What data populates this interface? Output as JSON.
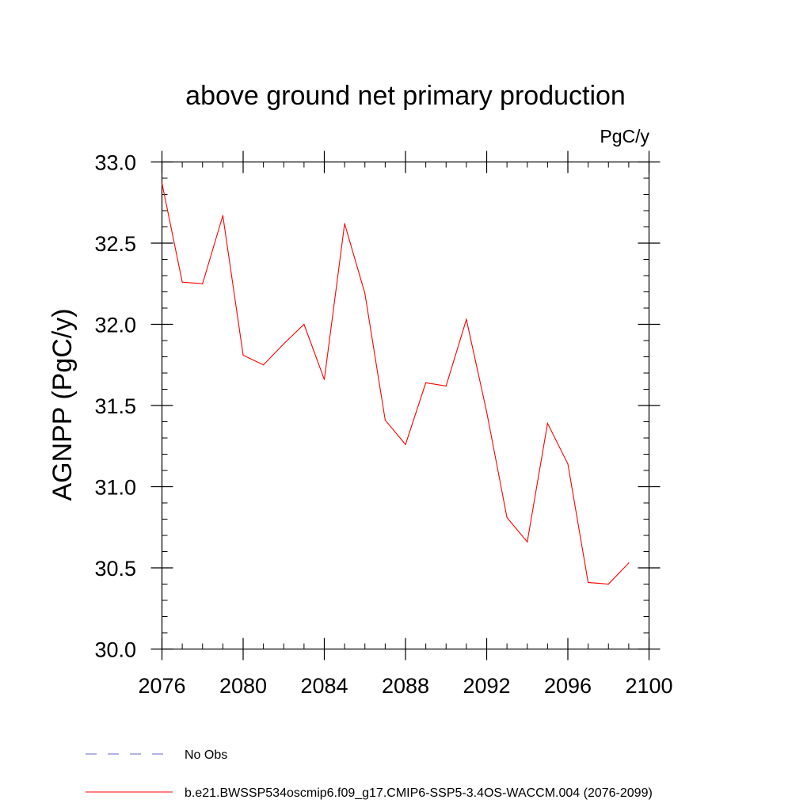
{
  "chart_data": {
    "type": "line",
    "title": "above ground net primary production",
    "units_label": "PgC/y",
    "xlabel": "",
    "ylabel": "AGNPP  (PgC/y)",
    "xlim": [
      2076,
      2100
    ],
    "ylim": [
      30.0,
      33.0
    ],
    "x_ticks": [
      2076,
      2080,
      2084,
      2088,
      2092,
      2096,
      2100
    ],
    "y_ticks": [
      "30.0",
      "30.5",
      "31.0",
      "31.5",
      "32.0",
      "32.5",
      "33.0"
    ],
    "x_minor_step": 1,
    "y_minor_step": 0.1,
    "series": [
      {
        "name": "b.e21.BWSSP534oscmip6.f09_g17.CMIP6-SSP5-3.4OS-WACCM.004 (2076-2099)",
        "color": "#ff0000",
        "style": "solid",
        "x": [
          2076,
          2077,
          2078,
          2079,
          2080,
          2081,
          2082,
          2083,
          2084,
          2085,
          2086,
          2087,
          2088,
          2089,
          2090,
          2091,
          2092,
          2093,
          2094,
          2095,
          2096,
          2097,
          2098,
          2099
        ],
        "values": [
          32.87,
          32.26,
          32.25,
          32.67,
          31.81,
          31.75,
          31.88,
          32.0,
          31.66,
          32.62,
          32.19,
          31.41,
          31.26,
          31.64,
          31.62,
          32.03,
          31.46,
          30.81,
          30.66,
          31.39,
          31.14,
          30.41,
          30.4,
          30.53
        ]
      }
    ],
    "legend": [
      {
        "label": "No Obs",
        "color": "#6666cc",
        "style": "dashed"
      },
      {
        "label": "b.e21.BWSSP534oscmip6.f09_g17.CMIP6-SSP5-3.4OS-WACCM.004 (2076-2099)",
        "color": "#ff0000",
        "style": "solid"
      }
    ]
  }
}
